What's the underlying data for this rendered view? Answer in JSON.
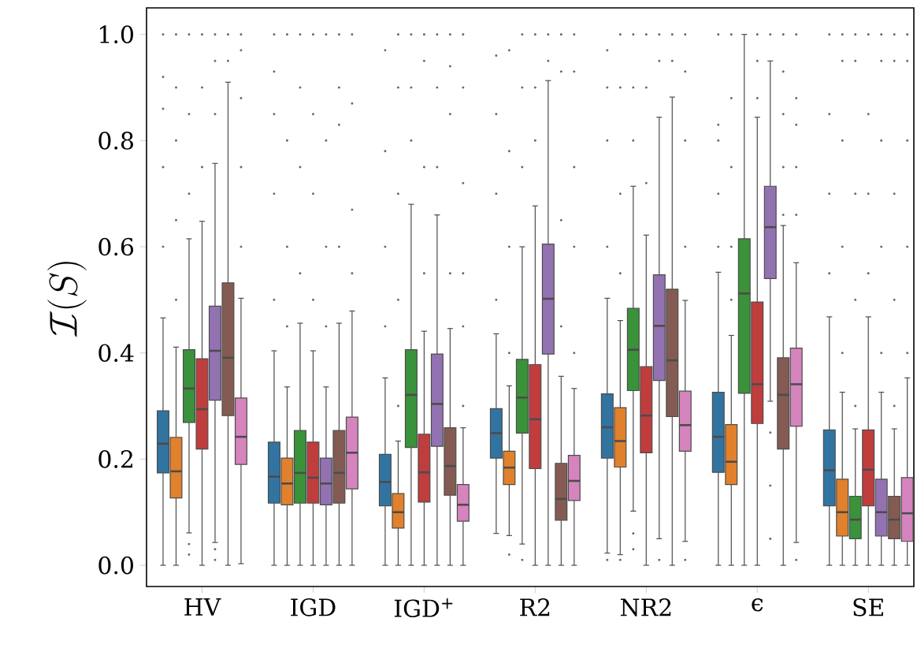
{
  "chart_data": {
    "type": "box",
    "ylabel": "\\mathcal{I}(S)",
    "categories": [
      "HV",
      "IGD",
      "IGD$^{+}$",
      "R2",
      "NR2",
      "ϵ",
      "SE"
    ],
    "ylim": [
      -0.04,
      1.05
    ],
    "yticks": [
      {
        "value": 0,
        "label": "0.0"
      },
      {
        "value": 0.2,
        "label": "0.2"
      },
      {
        "value": 0.4,
        "label": "0.4"
      },
      {
        "value": 0.6,
        "label": "0.6"
      },
      {
        "value": 0.8,
        "label": "0.8"
      },
      {
        "value": 1,
        "label": "1.0"
      }
    ],
    "series": [
      {
        "color": "#3274a1",
        "boxes": [
          {
            "low": 0,
            "q1": 0.174,
            "median": 0.229,
            "q3": 0.291,
            "high": 0.466,
            "outliers": [
              0.6,
              0.75,
              0.86,
              0.92,
              1.0
            ]
          },
          {
            "low": 0,
            "q1": 0.117,
            "median": 0.167,
            "q3": 0.232,
            "high": 0.404,
            "outliers": [
              0.5,
              0.7,
              0.85,
              0.93,
              1.0
            ]
          },
          {
            "low": 0,
            "q1": 0.112,
            "median": 0.157,
            "q3": 0.209,
            "high": 0.353,
            "outliers": [
              0.45,
              0.6,
              0.78,
              0.97
            ]
          },
          {
            "low": 0.06,
            "q1": 0.202,
            "median": 0.249,
            "q3": 0.295,
            "high": 0.436,
            "outliers": [
              0.5,
              0.7,
              0.85,
              0.96
            ]
          },
          {
            "low": 0.023,
            "q1": 0.202,
            "median": 0.26,
            "q3": 0.323,
            "high": 0.503,
            "outliers": [
              0.01,
              0.6,
              0.8,
              0.9,
              0.97
            ]
          },
          {
            "low": 0,
            "q1": 0.175,
            "median": 0.242,
            "q3": 0.326,
            "high": 0.552,
            "outliers": [
              0.6,
              0.7,
              0.8,
              0.83,
              1.0
            ]
          },
          {
            "low": 0,
            "q1": 0.112,
            "median": 0.179,
            "q3": 0.255,
            "high": 0.468,
            "outliers": [
              0.55,
              0.7,
              0.85,
              1.0
            ]
          }
        ]
      },
      {
        "color": "#e1812c",
        "boxes": [
          {
            "low": 0,
            "q1": 0.127,
            "median": 0.177,
            "q3": 0.241,
            "high": 0.411,
            "outliers": [
              0.5,
              0.65,
              0.8,
              0.9,
              1.0
            ]
          },
          {
            "low": 0,
            "q1": 0.114,
            "median": 0.154,
            "q3": 0.202,
            "high": 0.336,
            "outliers": [
              0.45,
              0.6,
              0.8,
              1.0
            ]
          },
          {
            "low": 0,
            "q1": 0.07,
            "median": 0.1,
            "q3": 0.135,
            "high": 0.234,
            "outliers": [
              0.3,
              0.5,
              0.7,
              0.9,
              1.0
            ]
          },
          {
            "low": 0.056,
            "q1": 0.152,
            "median": 0.184,
            "q3": 0.215,
            "high": 0.338,
            "outliers": [
              0.02,
              0.4,
              0.6,
              0.78,
              0.97
            ]
          },
          {
            "low": 0.02,
            "q1": 0.185,
            "median": 0.234,
            "q3": 0.297,
            "high": 0.461,
            "outliers": [
              0.01,
              0.55,
              0.7,
              0.9,
              1.0
            ]
          },
          {
            "low": 0,
            "q1": 0.152,
            "median": 0.195,
            "q3": 0.265,
            "high": 0.433,
            "outliers": [
              0.5,
              0.6,
              0.75,
              0.88,
              1.0
            ]
          },
          {
            "low": 0,
            "q1": 0.055,
            "median": 0.1,
            "q3": 0.162,
            "high": 0.326,
            "outliers": [
              0.4,
              0.6,
              0.8,
              0.95,
              1.0
            ]
          }
        ]
      },
      {
        "color": "#3a923a",
        "boxes": [
          {
            "low": 0.061,
            "q1": 0.269,
            "median": 0.333,
            "q3": 0.406,
            "high": 0.615,
            "outliers": [
              0.02,
              0.04,
              0.7,
              0.85,
              1.0
            ]
          },
          {
            "low": 0,
            "q1": 0.117,
            "median": 0.174,
            "q3": 0.254,
            "high": 0.456,
            "outliers": [
              0.55,
              0.75,
              0.9,
              1.0
            ]
          },
          {
            "low": 0,
            "q1": 0.222,
            "median": 0.321,
            "q3": 0.406,
            "high": 0.68,
            "outliers": [
              0.8,
              0.9,
              1.0
            ]
          },
          {
            "low": 0.04,
            "q1": 0.249,
            "median": 0.316,
            "q3": 0.388,
            "high": 0.6,
            "outliers": [
              0.01,
              0.75,
              0.9,
              1.0
            ]
          },
          {
            "low": 0.102,
            "q1": 0.329,
            "median": 0.406,
            "q3": 0.484,
            "high": 0.714,
            "outliers": [
              0.03,
              0.06,
              0.8,
              0.9,
              1.0
            ]
          },
          {
            "low": 0,
            "q1": 0.324,
            "median": 0.512,
            "q3": 0.615,
            "high": 1.0
          },
          {
            "low": 0,
            "q1": 0.05,
            "median": 0.086,
            "q3": 0.13,
            "high": 0.257,
            "outliers": [
              0.3,
              0.5,
              0.7,
              0.95,
              1.0
            ]
          }
        ]
      },
      {
        "color": "#c03d3e",
        "boxes": [
          {
            "low": 0,
            "q1": 0.219,
            "median": 0.294,
            "q3": 0.389,
            "high": 0.648,
            "outliers": [
              0.75,
              0.9,
              1.0
            ]
          },
          {
            "low": 0,
            "q1": 0.117,
            "median": 0.165,
            "q3": 0.232,
            "high": 0.404,
            "outliers": [
              0.5,
              0.7,
              0.85,
              1.0
            ]
          },
          {
            "low": 0,
            "q1": 0.119,
            "median": 0.175,
            "q3": 0.247,
            "high": 0.441,
            "outliers": [
              0.55,
              0.75,
              0.95,
              1.0
            ]
          },
          {
            "low": 0,
            "q1": 0.182,
            "median": 0.275,
            "q3": 0.378,
            "high": 0.677,
            "outliers": [
              0.8,
              0.9,
              1.0
            ]
          },
          {
            "low": 0,
            "q1": 0.212,
            "median": 0.282,
            "q3": 0.374,
            "high": 0.622,
            "outliers": [
              0.72,
              0.9,
              1.0
            ]
          },
          {
            "low": 0,
            "q1": 0.267,
            "median": 0.341,
            "q3": 0.496,
            "high": 0.844,
            "outliers": [
              0.88,
              0.95,
              1.0
            ]
          },
          {
            "low": 0,
            "q1": 0.112,
            "median": 0.18,
            "q3": 0.255,
            "high": 0.468,
            "outliers": [
              0.55,
              0.7,
              0.85,
              1.0
            ]
          }
        ]
      },
      {
        "color": "#9372b2",
        "boxes": [
          {
            "low": 0.043,
            "q1": 0.311,
            "median": 0.404,
            "q3": 0.488,
            "high": 0.757,
            "outliers": [
              0.01,
              0.03,
              0.85,
              0.95,
              1.0
            ]
          },
          {
            "low": 0,
            "q1": 0.114,
            "median": 0.154,
            "q3": 0.202,
            "high": 0.336,
            "outliers": [
              0.45,
              0.6,
              0.8,
              1.0
            ]
          },
          {
            "low": 0,
            "q1": 0.224,
            "median": 0.304,
            "q3": 0.398,
            "high": 0.66,
            "outliers": [
              0.75,
              0.9,
              1.0
            ]
          },
          {
            "low": 0,
            "q1": 0.398,
            "median": 0.502,
            "q3": 0.605,
            "high": 0.913,
            "outliers": [
              0.95,
              1.0
            ]
          },
          {
            "low": 0.05,
            "q1": 0.348,
            "median": 0.451,
            "q3": 0.547,
            "high": 0.844,
            "outliers": [
              0.01,
              0.95,
              1.0
            ]
          },
          {
            "low": 0.309,
            "q1": 0.54,
            "median": 0.637,
            "q3": 0.714,
            "high": 0.95,
            "outliers": [
              0.05,
              0.15,
              0.25,
              1.0
            ]
          },
          {
            "low": 0,
            "q1": 0.055,
            "median": 0.1,
            "q3": 0.162,
            "high": 0.326,
            "outliers": [
              0.4,
              0.6,
              0.8,
              0.95,
              1.0
            ]
          }
        ]
      },
      {
        "color": "#845b53",
        "boxes": [
          {
            "low": 0,
            "q1": 0.282,
            "median": 0.391,
            "q3": 0.532,
            "high": 0.91,
            "outliers": [
              0.95,
              1.0
            ]
          },
          {
            "low": 0,
            "q1": 0.117,
            "median": 0.174,
            "q3": 0.254,
            "high": 0.456,
            "outliers": [
              0.6,
              0.83,
              0.9,
              1.0
            ]
          },
          {
            "low": 0,
            "q1": 0.132,
            "median": 0.187,
            "q3": 0.259,
            "high": 0.446,
            "outliers": [
              0.55,
              0.85,
              0.94,
              1.0
            ]
          },
          {
            "low": 0,
            "q1": 0.085,
            "median": 0.125,
            "q3": 0.192,
            "high": 0.356,
            "outliers": [
              0.45,
              0.65,
              0.93,
              1.0
            ]
          },
          {
            "low": 0,
            "q1": 0.28,
            "median": 0.386,
            "q3": 0.52,
            "high": 0.882,
            "outliers": [
              0.95,
              1.0
            ]
          },
          {
            "low": 0,
            "q1": 0.219,
            "median": 0.321,
            "q3": 0.391,
            "high": 0.64,
            "outliers": [
              0.66,
              0.75,
              0.85,
              0.93,
              1.0
            ]
          },
          {
            "low": 0,
            "q1": 0.05,
            "median": 0.086,
            "q3": 0.13,
            "high": 0.257,
            "outliers": [
              0.3,
              0.5,
              0.7,
              0.95,
              1.0
            ]
          }
        ]
      },
      {
        "color": "#d684bd",
        "boxes": [
          {
            "low": 0.003,
            "q1": 0.19,
            "median": 0.242,
            "q3": 0.315,
            "high": 0.503,
            "outliers": [
              0.6,
              0.75,
              0.88,
              0.97,
              1.0
            ]
          },
          {
            "low": 0,
            "q1": 0.144,
            "median": 0.212,
            "q3": 0.279,
            "high": 0.479,
            "outliers": [
              0.55,
              0.67,
              0.87,
              1.0
            ]
          },
          {
            "low": 0,
            "q1": 0.083,
            "median": 0.114,
            "q3": 0.152,
            "high": 0.259,
            "outliers": [
              0.3,
              0.45,
              0.55,
              0.72,
              0.9,
              1.0
            ]
          },
          {
            "low": 0,
            "q1": 0.122,
            "median": 0.159,
            "q3": 0.207,
            "high": 0.333,
            "outliers": [
              0.4,
              0.6,
              0.75,
              0.93,
              1.0
            ]
          },
          {
            "low": 0.045,
            "q1": 0.215,
            "median": 0.264,
            "q3": 0.328,
            "high": 0.499,
            "outliers": [
              0.01,
              0.6,
              0.8,
              0.93,
              1.0
            ]
          },
          {
            "low": 0.043,
            "q1": 0.262,
            "median": 0.341,
            "q3": 0.409,
            "high": 0.57,
            "outliers": [
              0.01,
              0.66,
              0.75,
              0.83,
              0.88,
              1.0
            ]
          },
          {
            "low": 0,
            "q1": 0.045,
            "median": 0.098,
            "q3": 0.165,
            "high": 0.353,
            "outliers": [
              0.4,
              0.6,
              0.8,
              0.95,
              1.0
            ]
          }
        ]
      }
    ]
  }
}
